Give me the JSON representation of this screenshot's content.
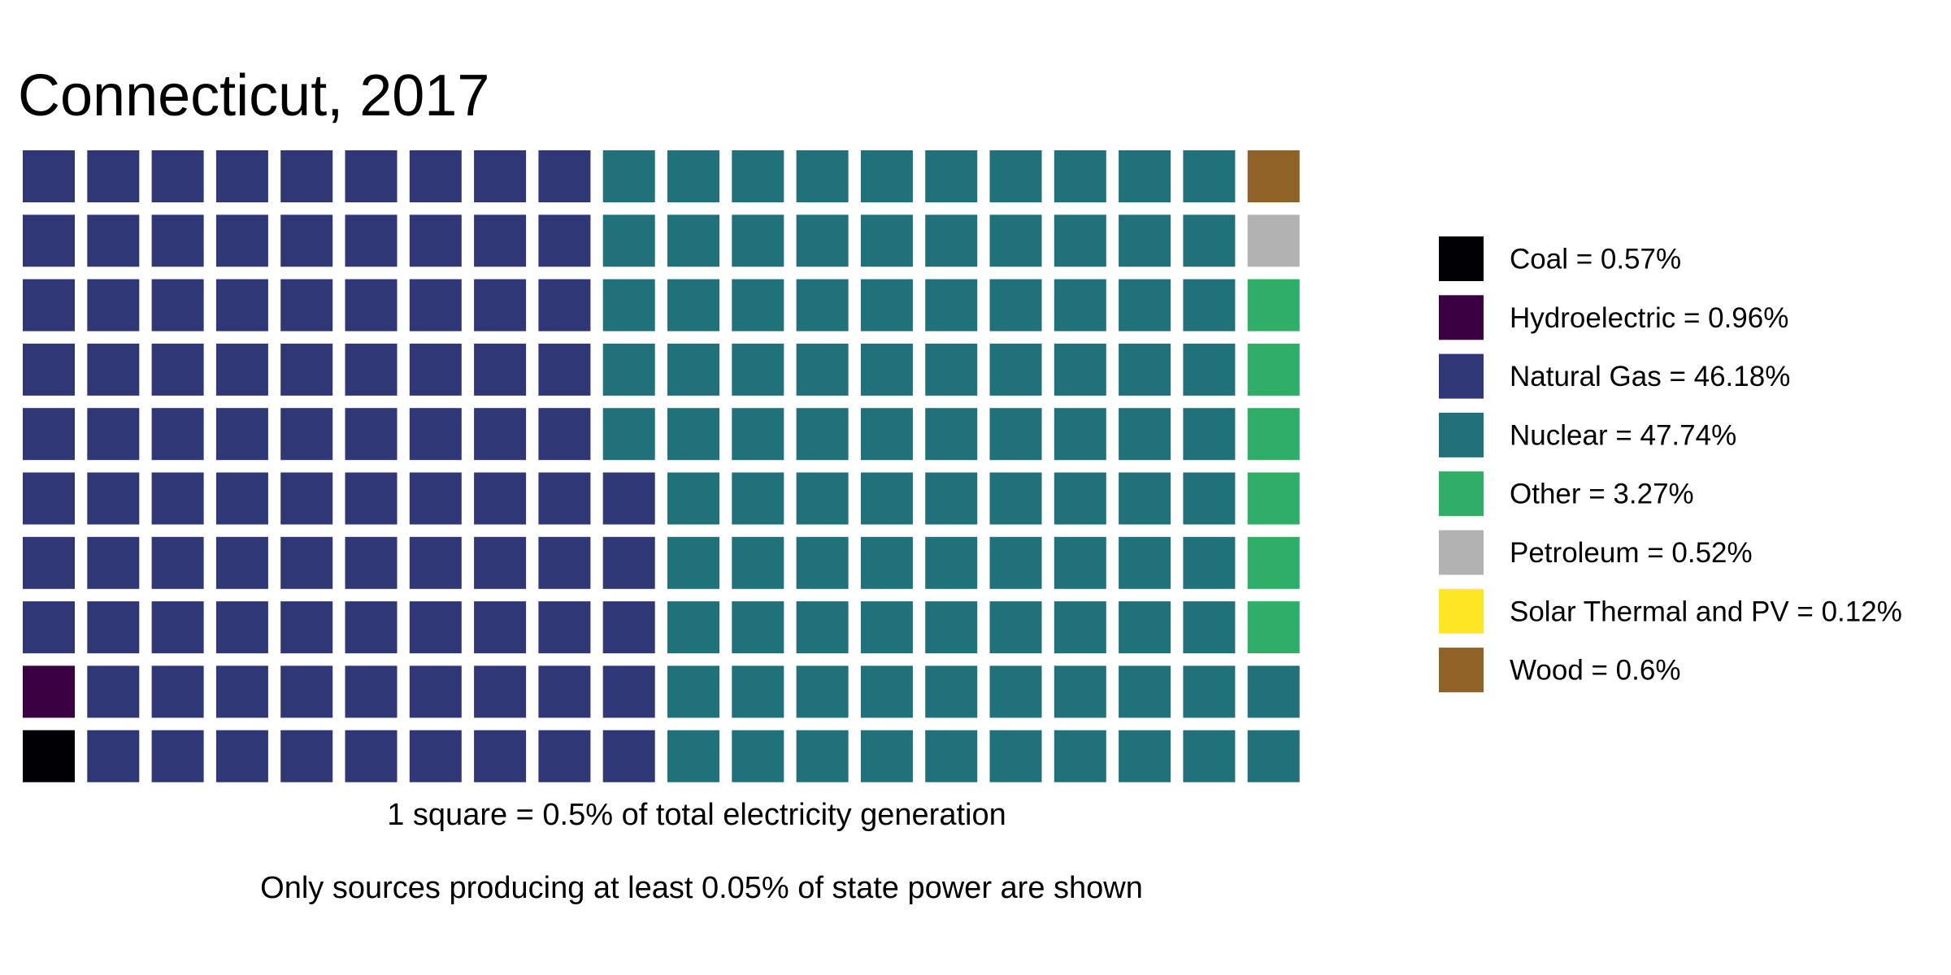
{
  "chart_data": {
    "type": "waffle",
    "title": "Connecticut, 2017",
    "grid": {
      "columns": 20,
      "rows": 10,
      "fill_order": "column-major, bottom-to-top, left-to-right"
    },
    "caption_1": "1 square = 0.5% of total electricity generation",
    "caption_2": "Only sources producing at least 0.05% of state power are shown",
    "legend_position": "right",
    "series": [
      {
        "name": "Coal",
        "value": 0.57,
        "squares": 1,
        "color": "#000004",
        "label": "Coal = 0.57%"
      },
      {
        "name": "Hydroelectric",
        "value": 0.96,
        "squares": 1,
        "color": "#3b0042",
        "label": "Hydroelectric = 0.96%"
      },
      {
        "name": "Natural Gas",
        "value": 46.18,
        "squares": 93,
        "color": "#2f3777",
        "label": "Natural Gas = 46.18%"
      },
      {
        "name": "Nuclear",
        "value": 47.74,
        "squares": 97,
        "color": "#21717a",
        "label": "Nuclear = 47.74%"
      },
      {
        "name": "Other",
        "value": 3.27,
        "squares": 6,
        "color": "#2fae67",
        "label": "Other = 3.27%"
      },
      {
        "name": "Petroleum",
        "value": 0.52,
        "squares": 1,
        "color": "#b2b2b2",
        "label": "Petroleum = 0.52%"
      },
      {
        "name": "Solar Thermal and PV",
        "value": 0.12,
        "squares": 0,
        "color": "#fde725",
        "label": "Solar Thermal and PV = 0.12%"
      },
      {
        "name": "Wood",
        "value": 0.6,
        "squares": 1,
        "color": "#8f6228",
        "label": "Wood = 0.6%"
      }
    ]
  }
}
